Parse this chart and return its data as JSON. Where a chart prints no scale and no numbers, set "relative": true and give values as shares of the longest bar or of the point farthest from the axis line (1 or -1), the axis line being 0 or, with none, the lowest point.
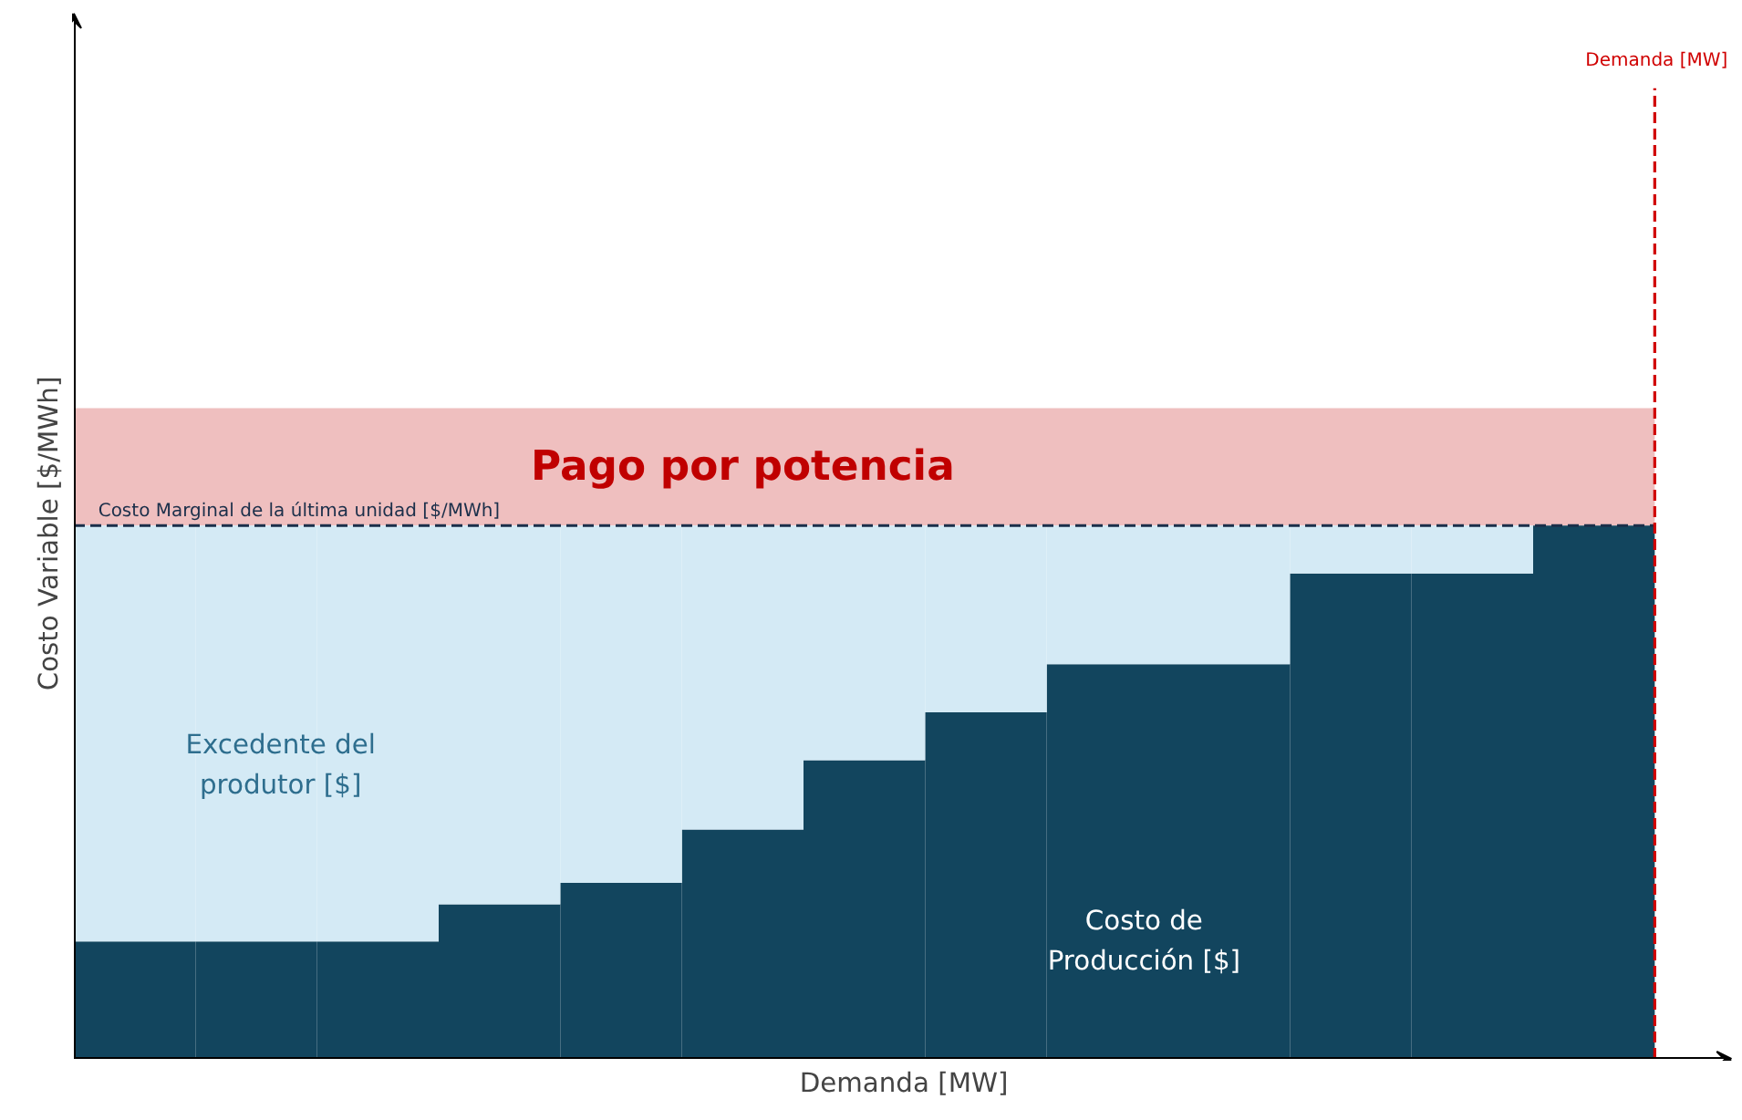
{
  "chart_data": {
    "type": "bar",
    "stacked": true,
    "relative": true,
    "xlabel": "Demanda [MW]",
    "ylabel": "Costo Variable [$/MWh]",
    "categories": [
      null,
      null,
      null,
      null,
      null,
      null,
      null,
      null,
      null,
      null,
      null,
      null,
      null
    ],
    "series": [
      {
        "color": "#12455e",
        "values": [
          0.22,
          0.22,
          0.22,
          0.29,
          0.33,
          0.43,
          0.56,
          0.65,
          0.74,
          0.74,
          0.91,
          0.91,
          1.0
        ]
      },
      {
        "color": "#d4eaf5",
        "values": [
          0.78,
          0.78,
          0.78,
          0.71,
          0.67,
          0.57,
          0.44,
          0.35,
          0.26,
          0.26,
          0.09,
          0.09,
          0.0
        ]
      }
    ],
    "ref_lines": [
      {
        "axis": "y",
        "value": 1.0,
        "label": "Costo Marginal de la última unidad [$/MWh]",
        "color": "#1b2f4a",
        "line_style": "dashed"
      }
    ],
    "bands": [
      {
        "axis": "y",
        "from": 1.0,
        "to": 1.22,
        "label": "Pago por potencia",
        "color": "#efbfbf"
      }
    ],
    "annotations": [
      "Excedente del produtor [$]",
      "Costo de Producción [$]",
      "Demanda [MW]"
    ]
  }
}
